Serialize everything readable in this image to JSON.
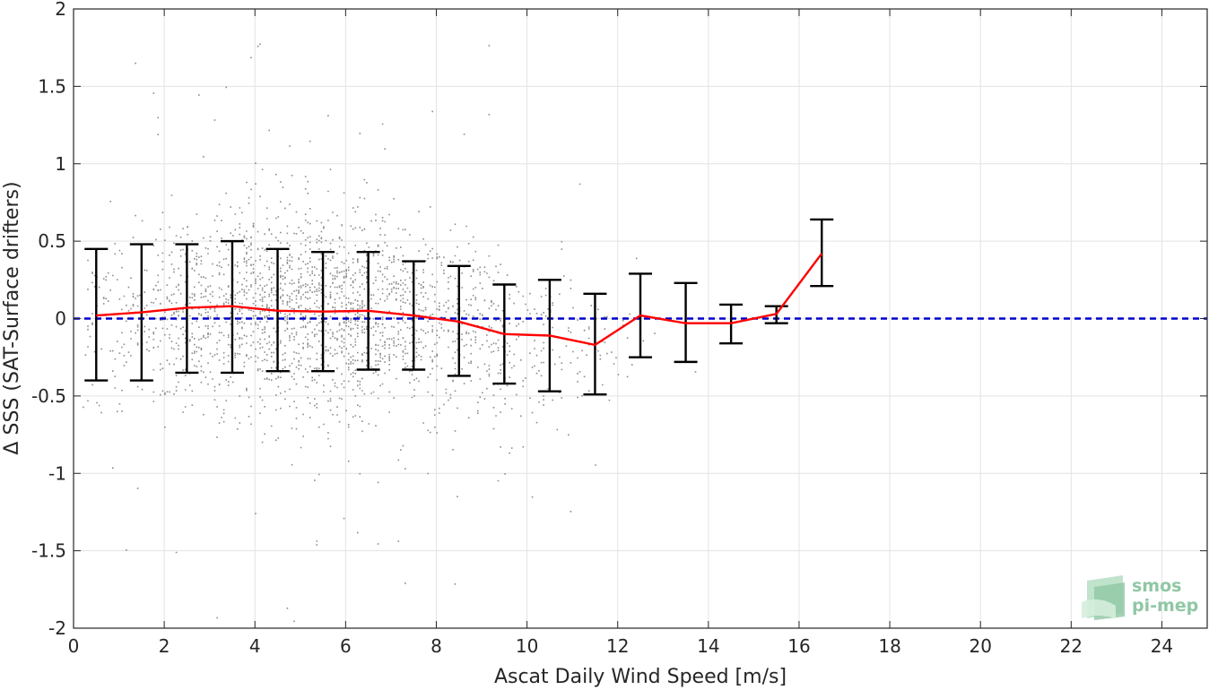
{
  "chart_data": {
    "type": "scatter",
    "xlabel": "Ascat Daily Wind Speed [m/s]",
    "ylabel": "Δ SSS (SAT-Surface drifters)",
    "xlim": [
      0,
      25
    ],
    "ylim": [
      -2,
      2
    ],
    "xticks": [
      0,
      2,
      4,
      6,
      8,
      10,
      12,
      14,
      16,
      18,
      20,
      22,
      24
    ],
    "yticks": [
      -2,
      -1.5,
      -1,
      -0.5,
      0,
      0.5,
      1,
      1.5,
      2
    ],
    "grid": true,
    "colors": {
      "scatter": "#8c8c8c",
      "mean_line": "#ff0000",
      "error_bars": "#000000",
      "zero_line": "#0000cc",
      "grid": "#e3e3e3",
      "axes": "#262626",
      "logo": "#8fc7a4"
    },
    "reference_line": {
      "y": 0,
      "style": "dashed"
    },
    "bin_stats": {
      "x": [
        0.5,
        1.5,
        2.5,
        3.5,
        4.5,
        5.5,
        6.5,
        7.5,
        8.5,
        9.5,
        10.5,
        11.5,
        12.5,
        13.5,
        14.5,
        15.5,
        16.5
      ],
      "mean": [
        0.02,
        0.04,
        0.07,
        0.08,
        0.05,
        0.045,
        0.05,
        0.02,
        -0.02,
        -0.1,
        -0.11,
        -0.17,
        0.02,
        -0.03,
        -0.03,
        0.03,
        0.42
      ],
      "upper": [
        0.45,
        0.48,
        0.48,
        0.5,
        0.45,
        0.43,
        0.43,
        0.37,
        0.34,
        0.22,
        0.25,
        0.16,
        0.29,
        0.23,
        0.09,
        0.08,
        0.64
      ],
      "lower": [
        -0.4,
        -0.4,
        -0.35,
        -0.35,
        -0.34,
        -0.34,
        -0.33,
        -0.33,
        -0.37,
        -0.42,
        -0.47,
        -0.49,
        -0.25,
        -0.28,
        -0.16,
        -0.03,
        0.21
      ]
    },
    "scatter_density": {
      "x_range": [
        0,
        17
      ],
      "core_center_x": 5.5,
      "note_shape": "dense cloud between 1 and 11 m/s"
    }
  },
  "logo": {
    "line1": "smos",
    "line2": "pi-mep"
  }
}
